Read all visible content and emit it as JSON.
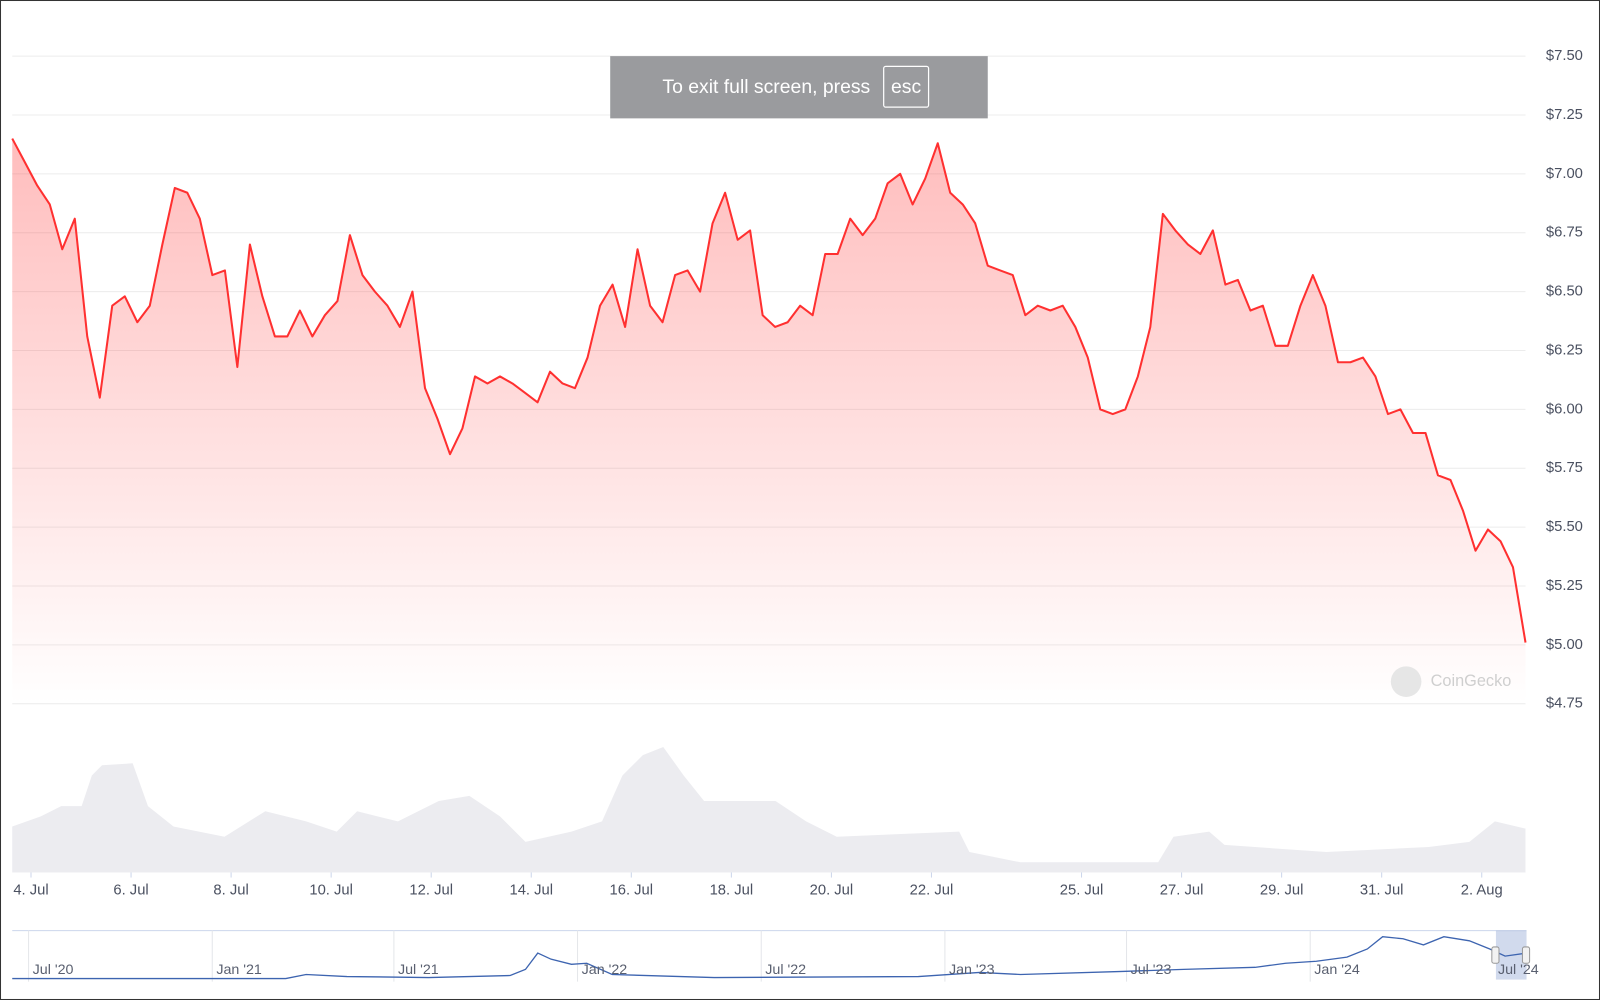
{
  "chart_data": {
    "type": "area",
    "color": "#ff3030",
    "values": [
      7.15,
      7.05,
      6.95,
      6.87,
      6.68,
      6.81,
      6.31,
      6.05,
      6.44,
      6.48,
      6.37,
      6.44,
      6.7,
      6.94,
      6.92,
      6.81,
      6.57,
      6.59,
      6.18,
      6.7,
      6.48,
      6.31,
      6.31,
      6.42,
      6.31,
      6.4,
      6.46,
      6.74,
      6.57,
      6.5,
      6.44,
      6.35,
      6.5,
      6.09,
      5.96,
      5.81,
      5.92,
      6.14,
      6.11,
      6.14,
      6.11,
      6.07,
      6.03,
      6.16,
      6.11,
      6.09,
      6.22,
      6.44,
      6.53,
      6.35,
      6.68,
      6.44,
      6.37,
      6.57,
      6.59,
      6.5,
      6.79,
      6.92,
      6.72,
      6.76,
      6.4,
      6.35,
      6.37,
      6.44,
      6.4,
      6.66,
      6.66,
      6.81,
      6.74,
      6.81,
      6.96,
      7.0,
      6.87,
      6.98,
      7.13,
      6.92,
      6.87,
      6.79,
      6.61,
      6.59,
      6.57,
      6.4,
      6.44,
      6.42,
      6.44,
      6.35,
      6.22,
      6.0,
      5.98,
      6.0,
      6.14,
      6.35,
      6.83,
      6.76,
      6.7,
      6.66,
      6.76,
      6.53,
      6.55,
      6.42,
      6.44,
      6.27,
      6.27,
      6.44,
      6.57,
      6.44,
      6.2,
      6.2,
      6.22,
      6.14,
      5.98,
      6.0,
      5.9,
      5.9,
      5.72,
      5.7,
      5.57,
      5.4,
      5.49,
      5.44,
      5.33,
      5.01
    ],
    "xlim": [
      0,
      121
    ],
    "xticks": [
      {
        "value": 1.5,
        "label": "4. Jul"
      },
      {
        "value": 9.5,
        "label": "6. Jul"
      },
      {
        "value": 17.5,
        "label": "8. Jul"
      },
      {
        "value": 25.5,
        "label": "10. Jul"
      },
      {
        "value": 33.5,
        "label": "12. Jul"
      },
      {
        "value": 41.5,
        "label": "14. Jul"
      },
      {
        "value": 49.5,
        "label": "16. Jul"
      },
      {
        "value": 57.5,
        "label": "18. Jul"
      },
      {
        "value": 65.5,
        "label": "20. Jul"
      },
      {
        "value": 73.5,
        "label": "22. Jul"
      },
      {
        "value": 85.5,
        "label": "25. Jul"
      },
      {
        "value": 93.5,
        "label": "27. Jul"
      },
      {
        "value": 101.5,
        "label": "29. Jul"
      },
      {
        "value": 109.5,
        "label": "31. Jul"
      },
      {
        "value": 117.5,
        "label": "2. Aug"
      }
    ],
    "ylim": [
      4.75,
      7.5
    ],
    "yticks": [
      {
        "value": 4.75,
        "label": "$4.75"
      },
      {
        "value": 5.0,
        "label": "$5.00"
      },
      {
        "value": 5.25,
        "label": "$5.25"
      },
      {
        "value": 5.5,
        "label": "$5.50"
      },
      {
        "value": 5.75,
        "label": "$5.75"
      },
      {
        "value": 6.0,
        "label": "$6.00"
      },
      {
        "value": 6.25,
        "label": "$6.25"
      },
      {
        "value": 6.5,
        "label": "$6.50"
      },
      {
        "value": 6.75,
        "label": "$6.75"
      },
      {
        "value": 7.0,
        "label": "$7.00"
      },
      {
        "value": 7.25,
        "label": "$7.25"
      },
      {
        "value": 7.5,
        "label": "$7.50"
      }
    ],
    "grid": true,
    "watermark": "CoinGecko",
    "navigator": {
      "labels": [
        "Jul '20",
        "Jan '21",
        "Jul '21",
        "Jan '22",
        "Jul '22",
        "Jan '23",
        "Jul '23",
        "Jan '24",
        "Jul '24"
      ]
    }
  },
  "overlay": {
    "message": "To exit full screen, press",
    "key": "esc"
  }
}
